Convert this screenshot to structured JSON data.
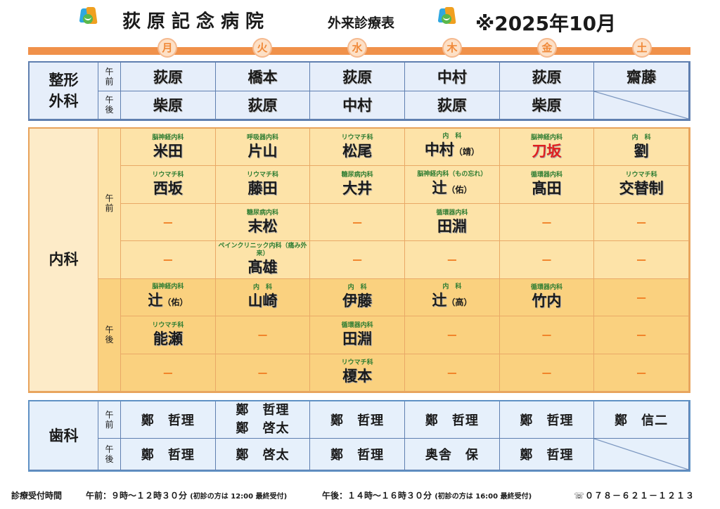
{
  "header": {
    "title": "荻原記念病院",
    "subtitle": "外来診療表",
    "date": "※2025年10月"
  },
  "days": [
    "月",
    "火",
    "水",
    "木",
    "金",
    "土"
  ],
  "periods": {
    "am": "午\n前",
    "pm": "午\n後"
  },
  "ortho": {
    "dept": "整形\n外科",
    "am": [
      "荻原",
      "橋本",
      "荻原",
      "中村",
      "荻原",
      "齋藤"
    ],
    "pm": [
      "柴原",
      "荻原",
      "中村",
      "荻原",
      "柴原",
      ""
    ]
  },
  "internal": {
    "dept": "内科",
    "am": [
      [
        {
          "s": "脳神経内科",
          "n": "米田"
        },
        {
          "s": "呼吸器内科",
          "n": "片山"
        },
        {
          "s": "リウマチ科",
          "n": "松尾"
        },
        {
          "s": "内　科",
          "n": "中村",
          "t": "（靖）"
        },
        {
          "s": "脳神経内科",
          "n": "刀坂",
          "red": true
        },
        {
          "s": "内　科",
          "n": "劉"
        }
      ],
      [
        {
          "s": "リウマチ科",
          "n": "西坂"
        },
        {
          "s": "リウマチ科",
          "n": "藤田"
        },
        {
          "s": "糖尿病内科",
          "n": "大井"
        },
        {
          "s": "脳神経内科（もの忘れ）",
          "n": "辻",
          "t": "（佑）"
        },
        {
          "s": "循環器内科",
          "n": "髙田"
        },
        {
          "s": "リウマチ科",
          "n": "交替制"
        }
      ],
      [
        {
          "d": "－"
        },
        {
          "s": "糖尿病内科",
          "n": "末松"
        },
        {
          "d": "－"
        },
        {
          "s": "循環器内科",
          "n": "田淵"
        },
        {
          "d": "－"
        },
        {
          "d": "－"
        }
      ],
      [
        {
          "d": "－"
        },
        {
          "s": "ペインクリニック内科（痛み外来）",
          "n": "髙雄"
        },
        {
          "d": "－"
        },
        {
          "d": "－"
        },
        {
          "d": "－"
        },
        {
          "d": "－"
        }
      ]
    ],
    "pm": [
      [
        {
          "s": "脳神経内科",
          "n": "辻",
          "t": "（佑）"
        },
        {
          "s": "内　科",
          "n": "山崎"
        },
        {
          "s": "内　科",
          "n": "伊藤"
        },
        {
          "s": "内　科",
          "n": "辻",
          "t": "（高）"
        },
        {
          "s": "循環器内科",
          "n": "竹内"
        },
        {
          "d": "－"
        }
      ],
      [
        {
          "s": "リウマチ科",
          "n": "能瀬"
        },
        {
          "d": "－"
        },
        {
          "s": "循環器内科",
          "n": "田淵"
        },
        {
          "d": "－"
        },
        {
          "d": "－"
        },
        {
          "d": "－"
        }
      ],
      [
        {
          "d": "－"
        },
        {
          "d": "－"
        },
        {
          "s": "リウマチ科",
          "n": "榎本"
        },
        {
          "d": "－"
        },
        {
          "d": "－"
        },
        {
          "d": "－"
        }
      ]
    ]
  },
  "dental": {
    "dept": "歯科",
    "am": [
      "鄭　哲理",
      "鄭　哲理\n鄭　啓太",
      "鄭　哲理",
      "鄭　哲理",
      "鄭　哲理",
      "鄭　信二"
    ],
    "pm": [
      "鄭　哲理",
      "鄭　啓太",
      "鄭　哲理",
      "奥舎　保",
      "鄭　哲理",
      ""
    ]
  },
  "footer": {
    "label": "診療受付時間",
    "am": "午前：９時～１２時３０分",
    "am_note": "(初診の方は 12:00 最終受付)",
    "pm": "午後：１４時～１６時３０分",
    "pm_note": "(初診の方は 16:00 最終受付)",
    "phone": "☏０７８－６２１－１２１３"
  }
}
